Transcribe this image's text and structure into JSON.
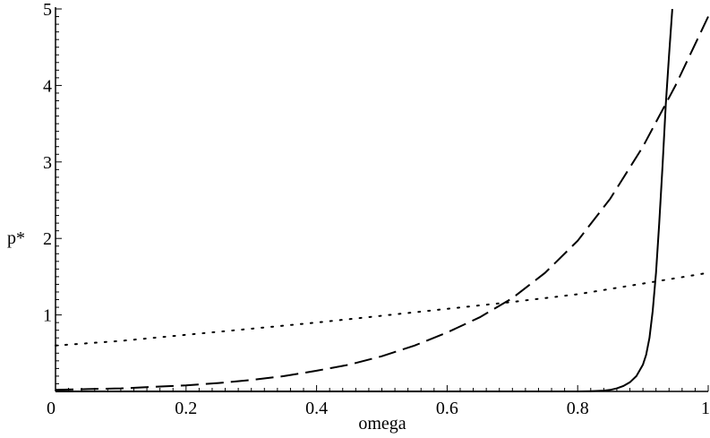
{
  "chart_data": {
    "type": "line",
    "title": "",
    "xlabel": "omega",
    "ylabel": "p*",
    "xlim": [
      0,
      1
    ],
    "ylim": [
      0,
      5
    ],
    "grid": false,
    "x_ticks": [
      0,
      0.2,
      0.4,
      0.6,
      0.8,
      1
    ],
    "x_tick_labels": [
      "0",
      "0.2",
      "0.4",
      "0.6",
      "0.8",
      "1"
    ],
    "y_ticks": [
      1,
      2,
      3,
      4,
      5
    ],
    "y_tick_labels": [
      "1",
      "2",
      "3",
      "4",
      "5"
    ],
    "series": [
      {
        "style": "solid",
        "x": [
          0,
          0.1,
          0.2,
          0.3,
          0.4,
          0.5,
          0.6,
          0.7,
          0.75,
          0.8,
          0.82,
          0.84,
          0.85,
          0.86,
          0.87,
          0.88,
          0.89,
          0.9,
          0.905,
          0.91,
          0.915,
          0.92,
          0.925,
          0.93,
          0.935,
          0.94,
          0.945
        ],
        "y": [
          0,
          0,
          0,
          0,
          0,
          0,
          0,
          0,
          0,
          0,
          0.003,
          0.01,
          0.02,
          0.04,
          0.07,
          0.12,
          0.2,
          0.35,
          0.48,
          0.7,
          1.05,
          1.55,
          2.2,
          2.95,
          3.75,
          4.4,
          5.0
        ]
      },
      {
        "style": "dashed",
        "x": [
          0,
          0.05,
          0.1,
          0.15,
          0.2,
          0.25,
          0.3,
          0.35,
          0.4,
          0.45,
          0.5,
          0.55,
          0.6,
          0.65,
          0.7,
          0.75,
          0.8,
          0.85,
          0.9,
          0.95,
          1.0
        ],
        "y": [
          0.02,
          0.03,
          0.04,
          0.06,
          0.08,
          0.11,
          0.15,
          0.2,
          0.27,
          0.35,
          0.46,
          0.6,
          0.77,
          0.97,
          1.22,
          1.55,
          1.97,
          2.52,
          3.2,
          4.0,
          4.9
        ]
      },
      {
        "style": "dotted",
        "x": [
          0,
          0.1,
          0.2,
          0.3,
          0.4,
          0.5,
          0.6,
          0.7,
          0.8,
          0.9,
          1.0
        ],
        "y": [
          0.6,
          0.66,
          0.74,
          0.82,
          0.9,
          0.99,
          1.08,
          1.17,
          1.27,
          1.41,
          1.55
        ]
      }
    ]
  }
}
